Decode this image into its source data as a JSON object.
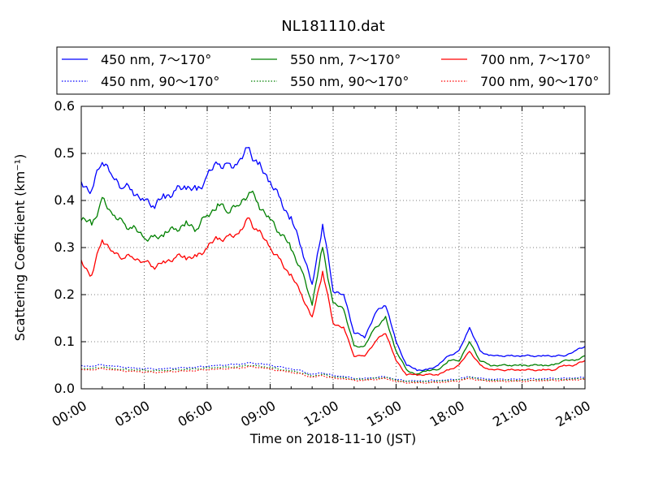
{
  "chart_data": {
    "type": "line",
    "title": "NL181110.dat",
    "xlabel": "Time on 2018-11-10 (JST)",
    "ylabel": "Scattering Coefficient (km⁻¹)",
    "xlim": [
      "00:00",
      "24:00"
    ],
    "ylim": [
      0.0,
      0.6
    ],
    "xticks": [
      "00:00",
      "03:00",
      "06:00",
      "09:00",
      "12:00",
      "15:00",
      "18:00",
      "21:00",
      "24:00"
    ],
    "yticks": [
      "0.0",
      "0.1",
      "0.2",
      "0.3",
      "0.4",
      "0.5",
      "0.6"
    ],
    "grid": true,
    "legend_position": "top",
    "x_hours": [
      0,
      0.5,
      1,
      1.5,
      2,
      2.5,
      3,
      3.5,
      4,
      4.5,
      5,
      5.5,
      6,
      6.5,
      7,
      7.5,
      8,
      8.5,
      9,
      9.5,
      10,
      10.5,
      11,
      11.5,
      12,
      12.5,
      13,
      13.5,
      14,
      14.5,
      15,
      15.5,
      16,
      16.5,
      17,
      17.5,
      18,
      18.5,
      19,
      19.5,
      20,
      20.5,
      21,
      21.5,
      22,
      22.5,
      23,
      23.5,
      24
    ],
    "series": [
      {
        "name": "450 nm, 7～170°",
        "color": "#0000ff",
        "style": "solid",
        "values": [
          0.44,
          0.42,
          0.49,
          0.45,
          0.43,
          0.42,
          0.4,
          0.39,
          0.41,
          0.42,
          0.43,
          0.42,
          0.45,
          0.48,
          0.47,
          0.48,
          0.51,
          0.47,
          0.44,
          0.4,
          0.36,
          0.3,
          0.22,
          0.35,
          0.21,
          0.2,
          0.12,
          0.11,
          0.16,
          0.18,
          0.1,
          0.05,
          0.04,
          0.04,
          0.05,
          0.07,
          0.08,
          0.13,
          0.08,
          0.07,
          0.07,
          0.07,
          0.07,
          0.07,
          0.07,
          0.07,
          0.07,
          0.08,
          0.09
        ]
      },
      {
        "name": "450 nm, 90～170°",
        "color": "#0000ff",
        "style": "dotted",
        "values": [
          0.048,
          0.048,
          0.051,
          0.048,
          0.046,
          0.044,
          0.043,
          0.042,
          0.043,
          0.044,
          0.045,
          0.046,
          0.048,
          0.05,
          0.051,
          0.052,
          0.055,
          0.053,
          0.05,
          0.046,
          0.042,
          0.038,
          0.03,
          0.034,
          0.028,
          0.026,
          0.022,
          0.022,
          0.024,
          0.026,
          0.02,
          0.017,
          0.017,
          0.017,
          0.018,
          0.019,
          0.021,
          0.026,
          0.022,
          0.02,
          0.02,
          0.02,
          0.02,
          0.021,
          0.021,
          0.022,
          0.022,
          0.023,
          0.024
        ]
      },
      {
        "name": "550 nm, 7～170°",
        "color": "#008000",
        "style": "solid",
        "values": [
          0.36,
          0.35,
          0.4,
          0.37,
          0.35,
          0.34,
          0.32,
          0.32,
          0.33,
          0.34,
          0.35,
          0.34,
          0.37,
          0.39,
          0.38,
          0.39,
          0.42,
          0.39,
          0.36,
          0.33,
          0.3,
          0.25,
          0.18,
          0.3,
          0.18,
          0.17,
          0.09,
          0.09,
          0.13,
          0.15,
          0.08,
          0.04,
          0.03,
          0.04,
          0.04,
          0.06,
          0.06,
          0.1,
          0.06,
          0.05,
          0.05,
          0.05,
          0.05,
          0.05,
          0.05,
          0.05,
          0.06,
          0.06,
          0.07
        ]
      },
      {
        "name": "550 nm, 90～170°",
        "color": "#008000",
        "style": "dotted",
        "values": [
          0.043,
          0.043,
          0.046,
          0.043,
          0.041,
          0.04,
          0.039,
          0.038,
          0.039,
          0.04,
          0.041,
          0.042,
          0.044,
          0.045,
          0.046,
          0.047,
          0.05,
          0.048,
          0.045,
          0.041,
          0.038,
          0.034,
          0.027,
          0.031,
          0.025,
          0.024,
          0.02,
          0.02,
          0.022,
          0.024,
          0.018,
          0.015,
          0.015,
          0.015,
          0.016,
          0.017,
          0.019,
          0.024,
          0.02,
          0.018,
          0.018,
          0.018,
          0.018,
          0.019,
          0.019,
          0.02,
          0.02,
          0.021,
          0.022
        ]
      },
      {
        "name": "700 nm, 7～170°",
        "color": "#ff0000",
        "style": "solid",
        "values": [
          0.27,
          0.24,
          0.32,
          0.29,
          0.28,
          0.28,
          0.27,
          0.26,
          0.27,
          0.28,
          0.28,
          0.28,
          0.3,
          0.32,
          0.32,
          0.33,
          0.36,
          0.33,
          0.3,
          0.27,
          0.24,
          0.2,
          0.15,
          0.25,
          0.14,
          0.13,
          0.07,
          0.07,
          0.1,
          0.12,
          0.06,
          0.03,
          0.03,
          0.03,
          0.03,
          0.04,
          0.05,
          0.08,
          0.05,
          0.04,
          0.04,
          0.04,
          0.04,
          0.04,
          0.04,
          0.04,
          0.05,
          0.05,
          0.06
        ]
      },
      {
        "name": "700 nm, 90～170°",
        "color": "#ff0000",
        "style": "dotted",
        "values": [
          0.04,
          0.04,
          0.043,
          0.04,
          0.038,
          0.037,
          0.036,
          0.035,
          0.036,
          0.037,
          0.038,
          0.039,
          0.041,
          0.042,
          0.043,
          0.044,
          0.047,
          0.045,
          0.042,
          0.038,
          0.035,
          0.031,
          0.024,
          0.028,
          0.022,
          0.021,
          0.018,
          0.018,
          0.02,
          0.022,
          0.016,
          0.013,
          0.013,
          0.013,
          0.014,
          0.015,
          0.017,
          0.022,
          0.018,
          0.016,
          0.016,
          0.016,
          0.016,
          0.017,
          0.017,
          0.018,
          0.018,
          0.019,
          0.02
        ]
      }
    ]
  }
}
